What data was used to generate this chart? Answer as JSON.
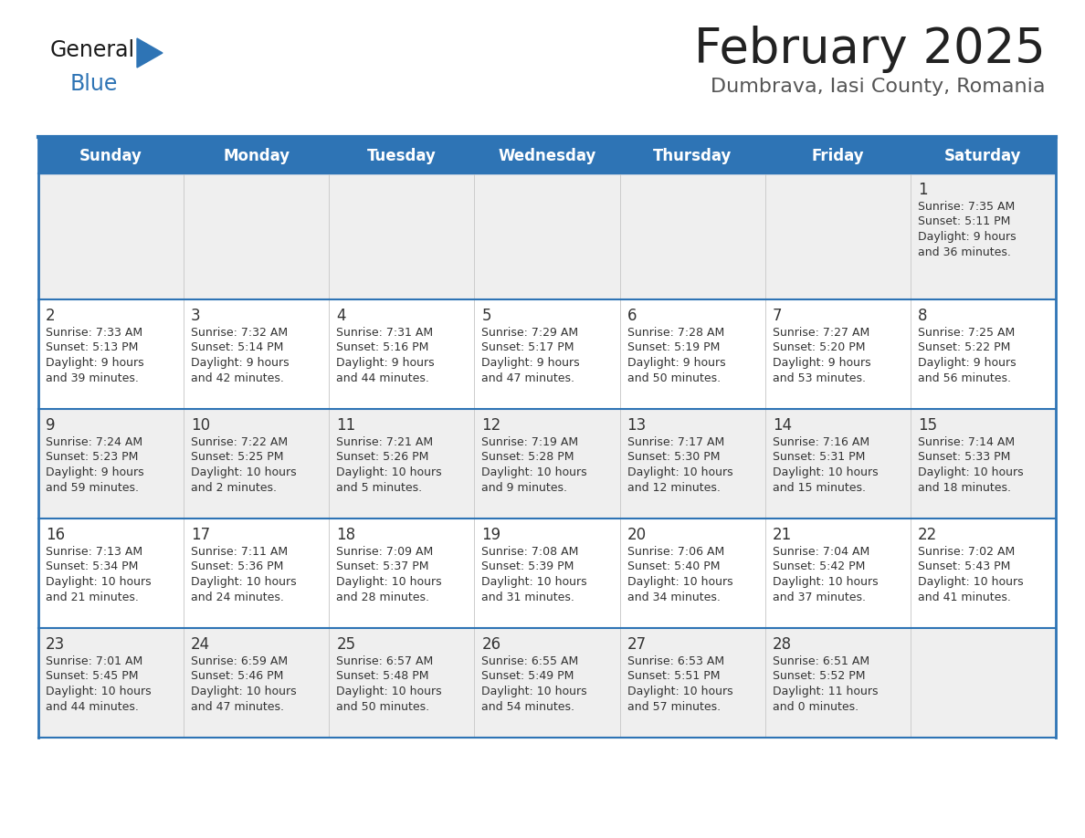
{
  "title": "February 2025",
  "subtitle": "Dumbrava, Iasi County, Romania",
  "days_of_week": [
    "Sunday",
    "Monday",
    "Tuesday",
    "Wednesday",
    "Thursday",
    "Friday",
    "Saturday"
  ],
  "header_bg": "#2E74B5",
  "header_text_color": "#FFFFFF",
  "row_bg_odd": "#EFEFEF",
  "row_bg_even": "#FFFFFF",
  "separator_color": "#2E74B5",
  "title_color": "#222222",
  "subtitle_color": "#555555",
  "day_number_color": "#333333",
  "cell_text_color": "#333333",
  "logo_black": "#1A1A1A",
  "logo_blue": "#2E74B5",
  "calendar_data": [
    [
      {
        "day": null,
        "sunrise": null,
        "sunset": null,
        "daylight": null
      },
      {
        "day": null,
        "sunrise": null,
        "sunset": null,
        "daylight": null
      },
      {
        "day": null,
        "sunrise": null,
        "sunset": null,
        "daylight": null
      },
      {
        "day": null,
        "sunrise": null,
        "sunset": null,
        "daylight": null
      },
      {
        "day": null,
        "sunrise": null,
        "sunset": null,
        "daylight": null
      },
      {
        "day": null,
        "sunrise": null,
        "sunset": null,
        "daylight": null
      },
      {
        "day": 1,
        "sunrise": "7:35 AM",
        "sunset": "5:11 PM",
        "daylight": "9 hours\nand 36 minutes."
      }
    ],
    [
      {
        "day": 2,
        "sunrise": "7:33 AM",
        "sunset": "5:13 PM",
        "daylight": "9 hours\nand 39 minutes."
      },
      {
        "day": 3,
        "sunrise": "7:32 AM",
        "sunset": "5:14 PM",
        "daylight": "9 hours\nand 42 minutes."
      },
      {
        "day": 4,
        "sunrise": "7:31 AM",
        "sunset": "5:16 PM",
        "daylight": "9 hours\nand 44 minutes."
      },
      {
        "day": 5,
        "sunrise": "7:29 AM",
        "sunset": "5:17 PM",
        "daylight": "9 hours\nand 47 minutes."
      },
      {
        "day": 6,
        "sunrise": "7:28 AM",
        "sunset": "5:19 PM",
        "daylight": "9 hours\nand 50 minutes."
      },
      {
        "day": 7,
        "sunrise": "7:27 AM",
        "sunset": "5:20 PM",
        "daylight": "9 hours\nand 53 minutes."
      },
      {
        "day": 8,
        "sunrise": "7:25 AM",
        "sunset": "5:22 PM",
        "daylight": "9 hours\nand 56 minutes."
      }
    ],
    [
      {
        "day": 9,
        "sunrise": "7:24 AM",
        "sunset": "5:23 PM",
        "daylight": "9 hours\nand 59 minutes."
      },
      {
        "day": 10,
        "sunrise": "7:22 AM",
        "sunset": "5:25 PM",
        "daylight": "10 hours\nand 2 minutes."
      },
      {
        "day": 11,
        "sunrise": "7:21 AM",
        "sunset": "5:26 PM",
        "daylight": "10 hours\nand 5 minutes."
      },
      {
        "day": 12,
        "sunrise": "7:19 AM",
        "sunset": "5:28 PM",
        "daylight": "10 hours\nand 9 minutes."
      },
      {
        "day": 13,
        "sunrise": "7:17 AM",
        "sunset": "5:30 PM",
        "daylight": "10 hours\nand 12 minutes."
      },
      {
        "day": 14,
        "sunrise": "7:16 AM",
        "sunset": "5:31 PM",
        "daylight": "10 hours\nand 15 minutes."
      },
      {
        "day": 15,
        "sunrise": "7:14 AM",
        "sunset": "5:33 PM",
        "daylight": "10 hours\nand 18 minutes."
      }
    ],
    [
      {
        "day": 16,
        "sunrise": "7:13 AM",
        "sunset": "5:34 PM",
        "daylight": "10 hours\nand 21 minutes."
      },
      {
        "day": 17,
        "sunrise": "7:11 AM",
        "sunset": "5:36 PM",
        "daylight": "10 hours\nand 24 minutes."
      },
      {
        "day": 18,
        "sunrise": "7:09 AM",
        "sunset": "5:37 PM",
        "daylight": "10 hours\nand 28 minutes."
      },
      {
        "day": 19,
        "sunrise": "7:08 AM",
        "sunset": "5:39 PM",
        "daylight": "10 hours\nand 31 minutes."
      },
      {
        "day": 20,
        "sunrise": "7:06 AM",
        "sunset": "5:40 PM",
        "daylight": "10 hours\nand 34 minutes."
      },
      {
        "day": 21,
        "sunrise": "7:04 AM",
        "sunset": "5:42 PM",
        "daylight": "10 hours\nand 37 minutes."
      },
      {
        "day": 22,
        "sunrise": "7:02 AM",
        "sunset": "5:43 PM",
        "daylight": "10 hours\nand 41 minutes."
      }
    ],
    [
      {
        "day": 23,
        "sunrise": "7:01 AM",
        "sunset": "5:45 PM",
        "daylight": "10 hours\nand 44 minutes."
      },
      {
        "day": 24,
        "sunrise": "6:59 AM",
        "sunset": "5:46 PM",
        "daylight": "10 hours\nand 47 minutes."
      },
      {
        "day": 25,
        "sunrise": "6:57 AM",
        "sunset": "5:48 PM",
        "daylight": "10 hours\nand 50 minutes."
      },
      {
        "day": 26,
        "sunrise": "6:55 AM",
        "sunset": "5:49 PM",
        "daylight": "10 hours\nand 54 minutes."
      },
      {
        "day": 27,
        "sunrise": "6:53 AM",
        "sunset": "5:51 PM",
        "daylight": "10 hours\nand 57 minutes."
      },
      {
        "day": 28,
        "sunrise": "6:51 AM",
        "sunset": "5:52 PM",
        "daylight": "11 hours\nand 0 minutes."
      },
      {
        "day": null,
        "sunrise": null,
        "sunset": null,
        "daylight": null
      }
    ]
  ]
}
